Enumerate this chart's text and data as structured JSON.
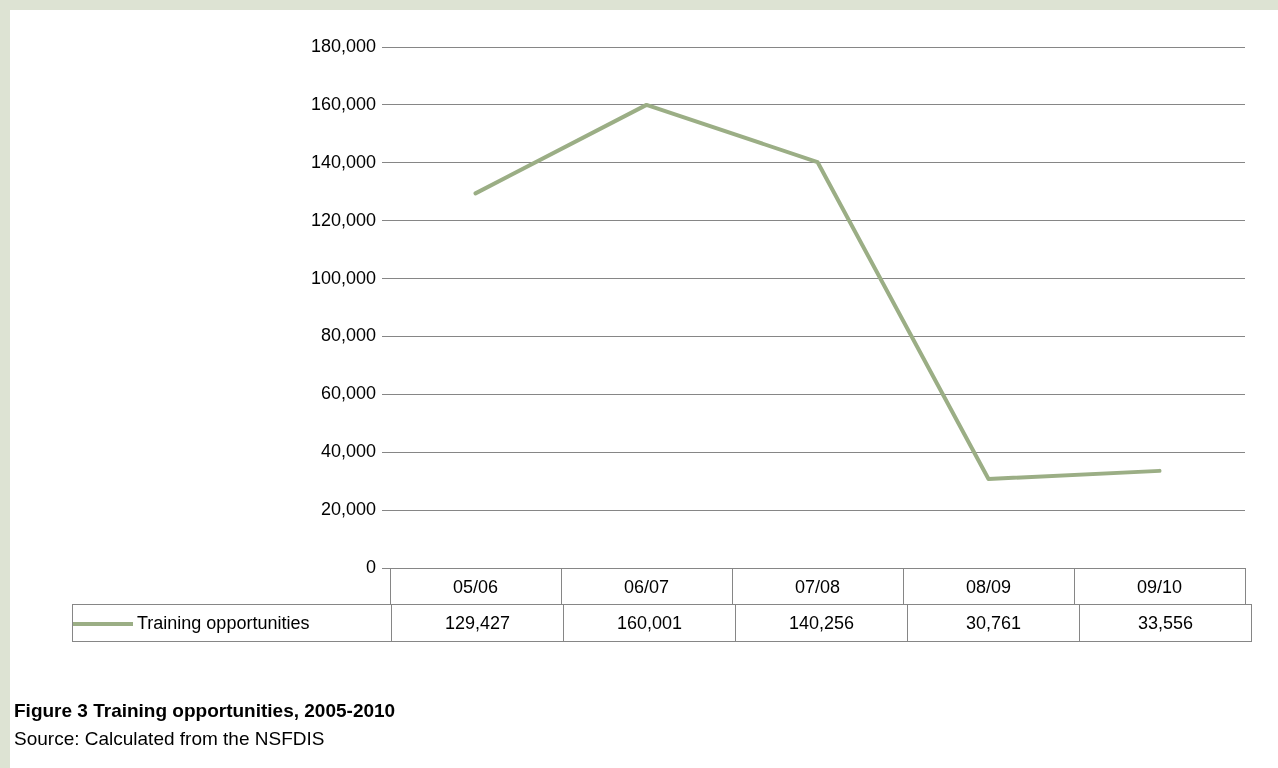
{
  "chart_data": {
    "type": "line",
    "title": "Figure 3 Training opportunities, 2005-2010",
    "annotations": [
      "Source: Calculated from the NSFDIS"
    ],
    "categories": [
      "05/06",
      "06/07",
      "07/08",
      "08/09",
      "09/10"
    ],
    "series": [
      {
        "name": "Training opportunities",
        "color": "#9bae85",
        "values": [
          129427,
          160001,
          140256,
          30761,
          33556
        ],
        "value_labels": [
          "129,427",
          "160,001",
          "140,256",
          "30,761",
          "33,556"
        ]
      }
    ],
    "ylim": [
      0,
      180000
    ],
    "yticks": [
      {
        "value": 0,
        "label": "0"
      },
      {
        "value": 20000,
        "label": "20,000"
      },
      {
        "value": 40000,
        "label": "40,000"
      },
      {
        "value": 60000,
        "label": "60,000"
      },
      {
        "value": 80000,
        "label": "80,000"
      },
      {
        "value": 100000,
        "label": "100,000"
      },
      {
        "value": 120000,
        "label": "120,000"
      },
      {
        "value": 140000,
        "label": "140,000"
      },
      {
        "value": 160000,
        "label": "160,000"
      },
      {
        "value": 180000,
        "label": "180,000"
      }
    ],
    "grid": "y",
    "legend": "bottom left",
    "marker": "none",
    "line_style": "solid"
  }
}
